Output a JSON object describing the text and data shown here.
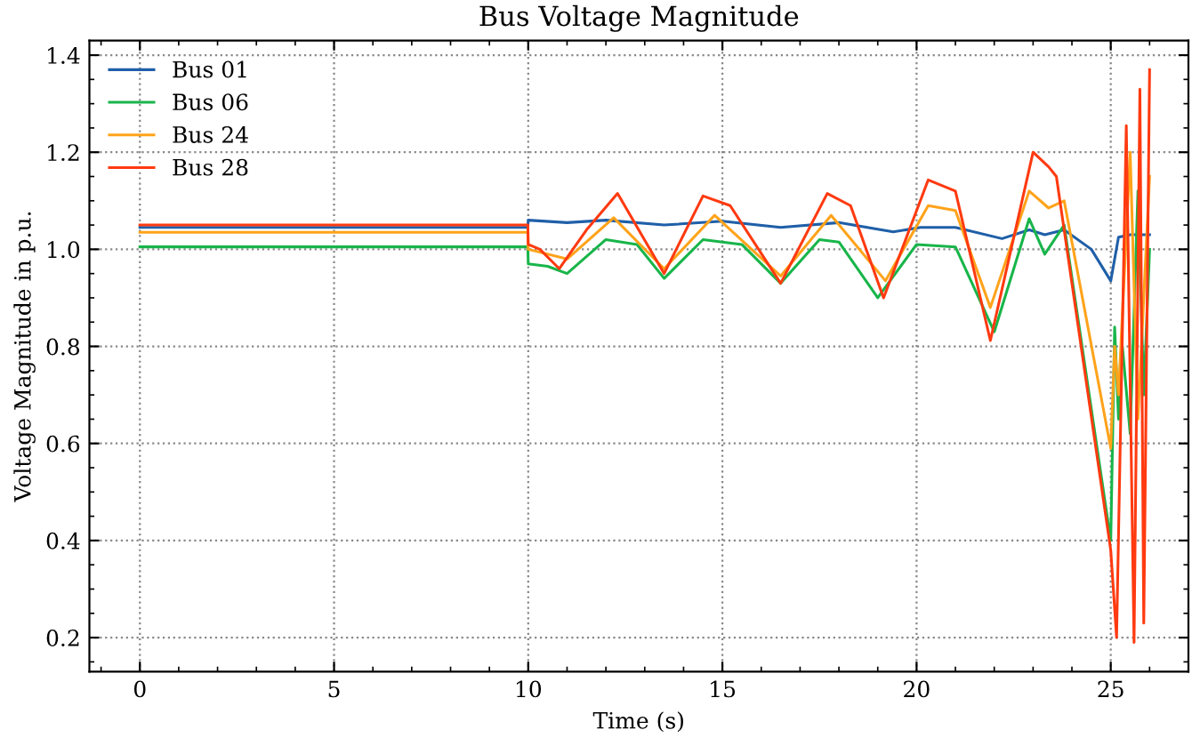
{
  "chart_data": {
    "type": "line",
    "title": "Bus Voltage Magnitude",
    "xlabel": "Time (s)",
    "ylabel": "Voltage Magnitude in p.u.",
    "xlim": [
      -1.3,
      27
    ],
    "ylim": [
      0.13,
      1.43
    ],
    "xticks": [
      0,
      5,
      10,
      15,
      20,
      25
    ],
    "yticks": [
      0.2,
      0.4,
      0.6,
      0.8,
      {
        "value": 1.0,
        "label": "1.0"
      },
      1.2,
      1.4
    ],
    "grid": true,
    "legend": "top left",
    "line_style": "solid",
    "marker": "none",
    "series": [
      {
        "name": "Bus 01",
        "color": "#1f5fa8",
        "x": [
          0,
          9.99,
          10,
          11,
          12,
          13.5,
          15,
          16.5,
          18,
          19.4,
          20.1,
          21,
          22.2,
          22.9,
          23.3,
          23.8,
          24.5,
          25.0,
          25.2,
          25.5,
          26
        ],
        "values": [
          1.045,
          1.045,
          1.06,
          1.055,
          1.06,
          1.05,
          1.058,
          1.045,
          1.055,
          1.036,
          1.045,
          1.045,
          1.022,
          1.04,
          1.03,
          1.04,
          1.0,
          0.935,
          1.025,
          1.03,
          1.03
        ]
      },
      {
        "name": "Bus 06",
        "color": "#18b54a",
        "x": [
          0,
          9.99,
          10,
          10.5,
          11,
          12,
          12.8,
          13.5,
          14.5,
          15.5,
          16.5,
          17.5,
          18,
          19,
          20,
          21,
          22,
          22.9,
          23.3,
          23.8,
          25.0,
          25.1,
          25.2,
          25.3,
          25.5,
          25.7,
          25.85,
          26
        ],
        "values": [
          1.005,
          1.005,
          0.97,
          0.965,
          0.95,
          1.02,
          1.01,
          0.94,
          1.02,
          1.01,
          0.93,
          1.02,
          1.015,
          0.9,
          1.01,
          1.005,
          0.83,
          1.063,
          0.99,
          1.05,
          0.4,
          0.84,
          0.65,
          0.8,
          0.62,
          1.12,
          0.7,
          1.0
        ]
      },
      {
        "name": "Bus 24",
        "color": "#ffa31a",
        "x": [
          0,
          9.99,
          10,
          11,
          12.2,
          13.5,
          14.8,
          16.5,
          17.8,
          19.2,
          20.3,
          21,
          21.9,
          22.9,
          23.4,
          23.8,
          25.0,
          25.1,
          25.2,
          25.5,
          25.7,
          26
        ],
        "values": [
          1.035,
          1.035,
          1.0,
          0.98,
          1.065,
          0.96,
          1.07,
          0.945,
          1.07,
          0.935,
          1.09,
          1.08,
          0.88,
          1.12,
          1.085,
          1.1,
          0.59,
          0.8,
          0.7,
          1.2,
          0.65,
          1.15
        ]
      },
      {
        "name": "Bus 28",
        "color": "#ff3a10",
        "x": [
          0,
          9.99,
          10,
          10.3,
          10.8,
          11.5,
          12.3,
          13.5,
          14.5,
          15.2,
          16.5,
          17.7,
          18.3,
          19.15,
          20.3,
          21,
          21.9,
          23.0,
          23.4,
          23.6,
          25.0,
          25.15,
          25.4,
          25.6,
          25.75,
          25.85,
          26.0
        ],
        "values": [
          1.05,
          1.05,
          1.01,
          1.0,
          0.96,
          1.04,
          1.115,
          0.95,
          1.11,
          1.09,
          0.93,
          1.115,
          1.09,
          0.9,
          1.143,
          1.12,
          0.812,
          1.2,
          1.17,
          1.15,
          0.38,
          0.2,
          1.255,
          0.19,
          1.33,
          0.23,
          1.37
        ]
      }
    ]
  }
}
